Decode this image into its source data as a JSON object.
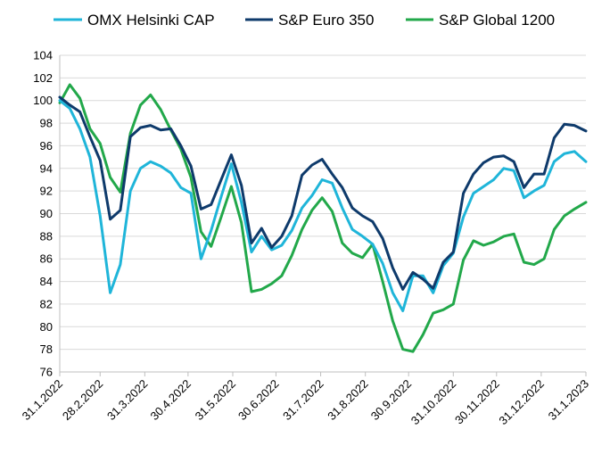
{
  "chart_data": {
    "type": "line",
    "title": "",
    "xlabel": "",
    "ylabel": "",
    "ylim": [
      76,
      104
    ],
    "yticks": [
      76,
      78,
      80,
      82,
      84,
      86,
      88,
      90,
      92,
      94,
      96,
      98,
      100,
      102,
      104
    ],
    "x_tick_labels": [
      "31.1.2022",
      "28.2.2022",
      "31.3.2022",
      "30.4.2022",
      "31.5.2022",
      "30.6.2022",
      "31.7.2022",
      "31.8.2022",
      "30.9.2022",
      "31.10.2022",
      "30.11.2022",
      "31.12.2022",
      "31.1.2023"
    ],
    "grid": "horizontal",
    "legend_position": "top",
    "x": [
      "2022-01-31",
      "2022-02-07",
      "2022-02-14",
      "2022-02-21",
      "2022-02-28",
      "2022-03-07",
      "2022-03-14",
      "2022-03-21",
      "2022-03-28",
      "2022-04-04",
      "2022-04-11",
      "2022-04-18",
      "2022-04-25",
      "2022-05-02",
      "2022-05-09",
      "2022-05-16",
      "2022-05-23",
      "2022-05-30",
      "2022-06-06",
      "2022-06-13",
      "2022-06-20",
      "2022-06-27",
      "2022-07-04",
      "2022-07-11",
      "2022-07-18",
      "2022-07-25",
      "2022-08-01",
      "2022-08-08",
      "2022-08-15",
      "2022-08-22",
      "2022-08-29",
      "2022-09-05",
      "2022-09-12",
      "2022-09-19",
      "2022-09-26",
      "2022-10-03",
      "2022-10-10",
      "2022-10-17",
      "2022-10-24",
      "2022-10-31",
      "2022-11-07",
      "2022-11-14",
      "2022-11-21",
      "2022-11-28",
      "2022-12-05",
      "2022-12-12",
      "2022-12-19",
      "2022-12-26",
      "2023-01-02",
      "2023-01-09",
      "2023-01-16",
      "2023-01-23",
      "2023-01-31"
    ],
    "series": [
      {
        "name": "OMX Helsinki CAP",
        "color": "#1fb5d9",
        "values": [
          100,
          99.3,
          97.5,
          95,
          89.8,
          83,
          85.5,
          92,
          94,
          94.6,
          94.2,
          93.6,
          92.3,
          91.8,
          86,
          88.5,
          91.5,
          94.4,
          91,
          86.6,
          88,
          86.8,
          87.2,
          88.5,
          90.5,
          91.6,
          93,
          92.7,
          90.5,
          88.6,
          88,
          87.3,
          85.6,
          83,
          81.4,
          84.5,
          84.5,
          83,
          85.4,
          86.5,
          89.7,
          91.8,
          92.4,
          93,
          94,
          93.8,
          91.4,
          92,
          92.5,
          94.6,
          95.3,
          95.5,
          94.6
        ]
      },
      {
        "name": "S&P Euro 350",
        "color": "#0e3a6b",
        "values": [
          100.3,
          99.6,
          99,
          96.8,
          94.7,
          89.5,
          90.3,
          96.8,
          97.6,
          97.8,
          97.4,
          97.5,
          96,
          94.2,
          90.4,
          90.8,
          93,
          95.2,
          92.5,
          87.4,
          88.7,
          87,
          88,
          89.8,
          93.4,
          94.3,
          94.8,
          93.5,
          92.3,
          90.5,
          89.8,
          89.3,
          87.8,
          85.2,
          83.3,
          84.8,
          84.2,
          83.4,
          85.7,
          86.6,
          91.8,
          93.5,
          94.5,
          95,
          95.1,
          94.6,
          92.3,
          93.5,
          93.5,
          96.7,
          97.9,
          97.8,
          97.3
        ]
      },
      {
        "name": "S&P Global 1200",
        "color": "#22a84a",
        "values": [
          99.8,
          101.4,
          100.2,
          97.5,
          96.2,
          93.2,
          91.9,
          97.1,
          99.6,
          100.5,
          99.2,
          97.4,
          95.7,
          93.2,
          88.4,
          87.1,
          89.7,
          92.4,
          89.2,
          83.1,
          83.3,
          83.8,
          84.5,
          86.3,
          88.6,
          90.3,
          91.4,
          90.2,
          87.4,
          86.5,
          86.1,
          87.3,
          84,
          80.5,
          78,
          77.8,
          79.3,
          81.2,
          81.5,
          82,
          85.9,
          87.6,
          87.2,
          87.5,
          88,
          88.2,
          85.7,
          85.5,
          86,
          88.6,
          89.8,
          90.4,
          91
        ]
      }
    ]
  }
}
